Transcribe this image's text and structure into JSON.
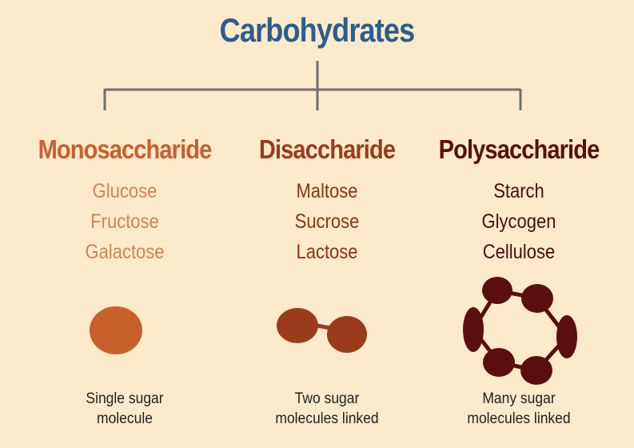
{
  "title": "Carbohydrates",
  "colors": {
    "title": "#2b5d8f",
    "mono": "#c8602c",
    "di": "#9a3c1c",
    "poly": "#5a0f0c",
    "mono_items": "#cf8552",
    "di_items": "#8a3416",
    "poly_items": "#4c0d0a",
    "connector": "#6f6f6f",
    "background": "#fdeacb"
  },
  "columns": [
    {
      "heading": "Monosaccharide",
      "items": [
        "Glucose",
        "Fructose",
        "Galactose"
      ],
      "caption_line1": "Single sugar",
      "caption_line2": "molecule"
    },
    {
      "heading": "Disaccharide",
      "items": [
        "Maltose",
        "Sucrose",
        "Lactose"
      ],
      "caption_line1": "Two sugar",
      "caption_line2": "molecules linked"
    },
    {
      "heading": "Polysaccharide",
      "items": [
        "Starch",
        "Glycogen",
        "Cellulose"
      ],
      "caption_line1": "Many sugar",
      "caption_line2": "molecules linked"
    }
  ]
}
